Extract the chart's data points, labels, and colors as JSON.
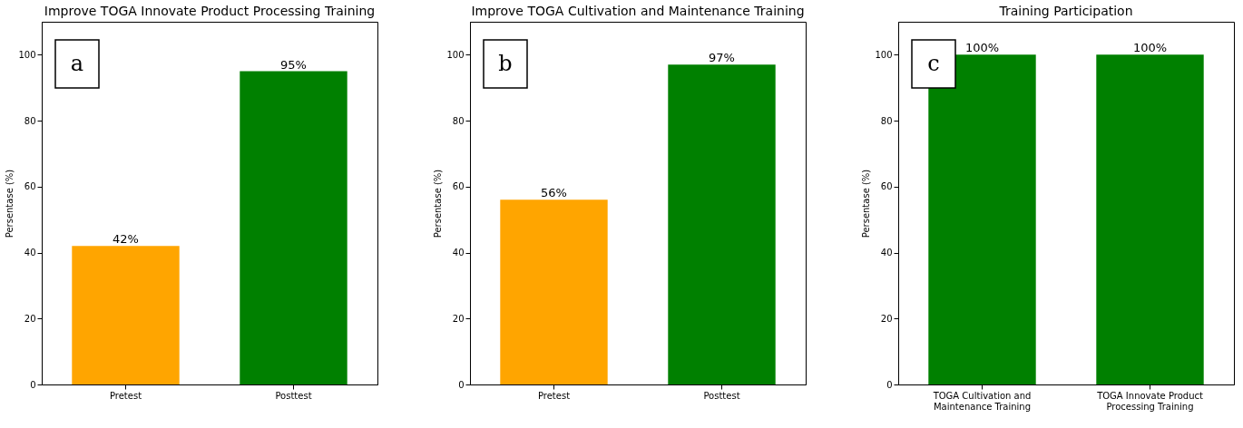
{
  "chart_data": [
    {
      "type": "bar",
      "title": "Improve TOGA Innovate Product Processing Training",
      "ylabel": "Persentase (%)",
      "categories": [
        "Pretest",
        "Posttest"
      ],
      "values": [
        42,
        95
      ],
      "colors": [
        "#ffa500",
        "#008000"
      ],
      "value_labels": [
        "42%",
        "95%"
      ],
      "ylim": [
        0,
        110
      ],
      "yticks": [
        0,
        20,
        40,
        60,
        80,
        100
      ],
      "annotations": [
        "a"
      ]
    },
    {
      "type": "bar",
      "title": "Improve TOGA Cultivation and Maintenance Training",
      "ylabel": "Persentase (%)",
      "categories": [
        "Pretest",
        "Posttest"
      ],
      "values": [
        56,
        97
      ],
      "colors": [
        "#ffa500",
        "#008000"
      ],
      "value_labels": [
        "56%",
        "97%"
      ],
      "ylim": [
        0,
        110
      ],
      "yticks": [
        0,
        20,
        40,
        60,
        80,
        100
      ],
      "annotations": [
        "b"
      ]
    },
    {
      "type": "bar",
      "title": "Training Participation",
      "ylabel": "Persentase (%)",
      "categories": [
        "TOGA Cultivation and Maintenance Training",
        "TOGA Innovate Product Processing Training"
      ],
      "values": [
        100,
        100
      ],
      "colors": [
        "#008000",
        "#008000"
      ],
      "value_labels": [
        "100%",
        "100%"
      ],
      "ylim": [
        0,
        110
      ],
      "yticks": [
        0,
        20,
        40,
        60,
        80,
        100
      ],
      "annotations": [
        "c"
      ]
    }
  ]
}
